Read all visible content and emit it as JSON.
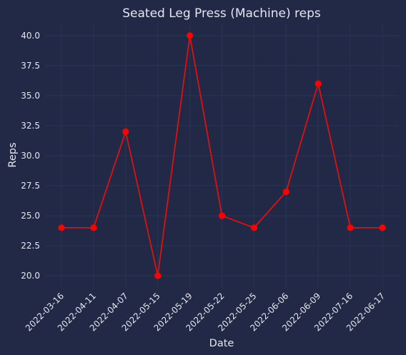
{
  "chart_data": {
    "type": "line",
    "title": "Seated Leg Press (Machine) reps",
    "xlabel": "Date",
    "ylabel": "Reps",
    "categories": [
      "2022-03-16",
      "2022-04-11",
      "2022-04-07",
      "2022-05-15",
      "2022-05-19",
      "2022-05-22",
      "2022-05-25",
      "2022-06-06",
      "2022-06-09",
      "2022-07-16",
      "2022-06-17"
    ],
    "series": [
      {
        "values": [
          24,
          24,
          32,
          20,
          40,
          25,
          24,
          27,
          36,
          24,
          24
        ]
      }
    ],
    "ylim": [
      19.0,
      41.0
    ],
    "yticks": [
      20.0,
      22.5,
      25.0,
      27.5,
      30.0,
      32.5,
      35.0,
      37.5,
      40.0
    ],
    "ytick_labels": [
      "20.0",
      "22.5",
      "25.0",
      "27.5",
      "30.0",
      "32.5",
      "35.0",
      "37.5",
      "40.0"
    ],
    "grid": true,
    "legend": "none",
    "colors": {
      "background": "#212946",
      "line": "#e01010",
      "marker": "#ff0000",
      "grid": "#2a3459",
      "text": "#e6e6ef"
    }
  }
}
